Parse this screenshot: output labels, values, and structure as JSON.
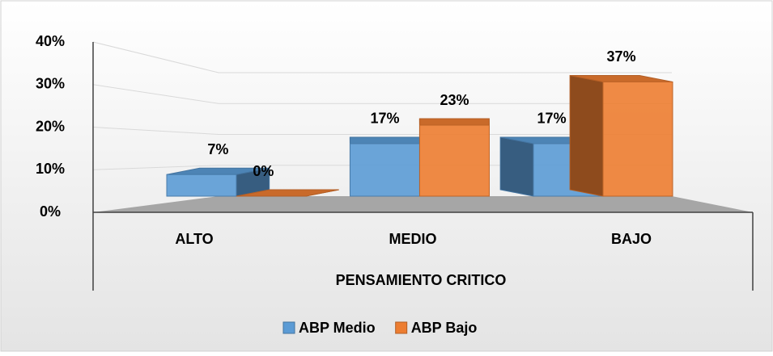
{
  "chart_data": {
    "type": "bar3d",
    "categories": [
      "ALTO",
      "MEDIO",
      "BAJO"
    ],
    "series": [
      {
        "name": "ABP Medio",
        "color": "#5b9bd5",
        "values": [
          7,
          17,
          17
        ],
        "value_labels": [
          "7%",
          "17%",
          "17%"
        ]
      },
      {
        "name": "ABP Bajo",
        "color": "#ed7d31",
        "values": [
          0,
          23,
          37
        ],
        "value_labels": [
          "0%",
          "23%",
          "37%"
        ]
      }
    ],
    "xlabel": "PENSAMIENTO CRITICO",
    "ylim": [
      0,
      40
    ],
    "yticks": [
      {
        "value": 0,
        "label": "0%"
      },
      {
        "value": 10,
        "label": "10%"
      },
      {
        "value": 20,
        "label": "20%"
      },
      {
        "value": 30,
        "label": "30%"
      },
      {
        "value": 40,
        "label": "40%"
      }
    ],
    "grid": true,
    "legend": "bottom"
  }
}
